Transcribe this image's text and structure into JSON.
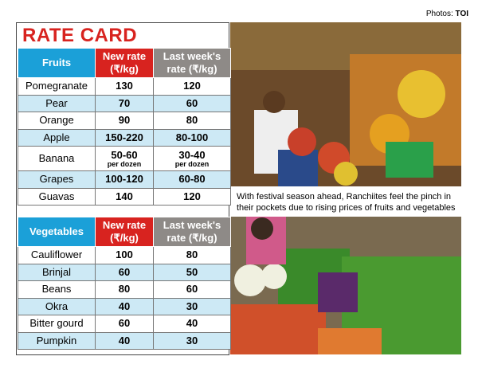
{
  "header": {
    "credit_label": "Photos:",
    "credit_source": "TOI",
    "title": "RATE CARD"
  },
  "fruits": {
    "headers": [
      [
        "Fruits"
      ],
      [
        "New rate",
        "(₹/kg)"
      ],
      [
        "Last week's",
        "rate (₹/kg)"
      ]
    ],
    "rows": [
      [
        "Pomegranate",
        "130",
        "120"
      ],
      [
        "Pear",
        "70",
        "60"
      ],
      [
        "Orange",
        "90",
        "80"
      ],
      [
        "Apple",
        "150-220",
        "80-100"
      ],
      [
        "Banana",
        {
          "text": "50-60",
          "note": "per dozen"
        },
        {
          "text": "30-40",
          "note": "per dozen"
        }
      ],
      [
        "Grapes",
        "100-120",
        "60-80"
      ],
      [
        "Guavas",
        "140",
        "120"
      ]
    ]
  },
  "vegetables": {
    "headers": [
      [
        "Vegetables"
      ],
      [
        "New rate",
        "(₹/kg)"
      ],
      [
        "Last week's",
        "rate (₹/kg)"
      ]
    ],
    "rows": [
      [
        "Cauliflower",
        "100",
        "80"
      ],
      [
        "Brinjal",
        "60",
        "50"
      ],
      [
        "Beans",
        "80",
        "60"
      ],
      [
        "Okra",
        "40",
        "30"
      ],
      [
        "Bitter gourd",
        "60",
        "40"
      ],
      [
        "Pumpkin",
        "40",
        "30"
      ]
    ]
  },
  "caption": [
    "With festival season ahead, Ranchiites feel the pinch in",
    "their pockets due to rising prices of fruits and vegetables"
  ]
}
